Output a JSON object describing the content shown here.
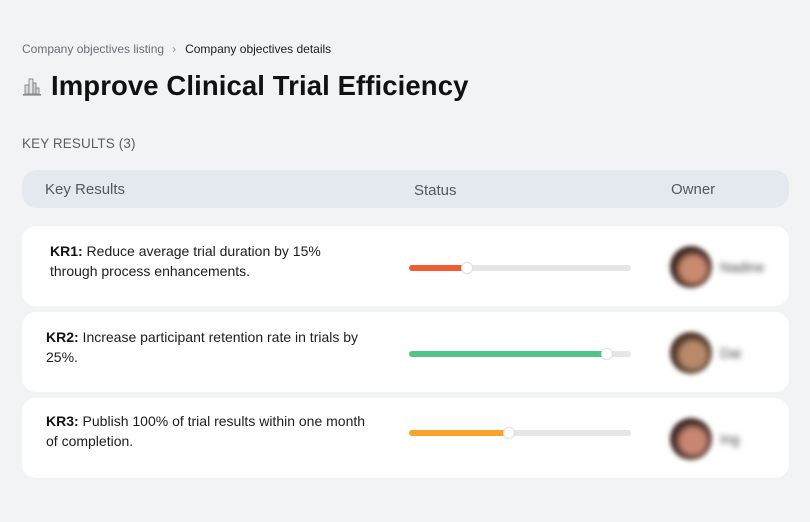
{
  "breadcrumb": {
    "items": [
      {
        "label": "Company objectives listing"
      },
      {
        "label": "Company objectives details"
      }
    ],
    "separator": "›"
  },
  "objective": {
    "icon": "city-buildings-icon",
    "title": "Improve Clinical Trial Efficiency"
  },
  "key_results_section": {
    "label": "KEY RESULTS (3)"
  },
  "table": {
    "headers": {
      "key_results": "Key Results",
      "status": "Status",
      "owner": "Owner"
    },
    "rows": [
      {
        "id": "KR1:",
        "text": " Reduce average trial duration by 15% through process enhancements.",
        "progress_percent": 26,
        "progress_color": "#f25c33",
        "owner_name": "Nadine",
        "avatar_colors": [
          "#3a2420",
          "#c98a6e"
        ]
      },
      {
        "id": "KR2:",
        "text": " Increase participant retention rate in trials by 25%.",
        "progress_percent": 89,
        "progress_color": "#52c48a",
        "owner_name": "Dai",
        "avatar_colors": [
          "#4a3326",
          "#b88a6a"
        ]
      },
      {
        "id": "KR3:",
        "text": " Publish 100% of trial results within one month of completion.",
        "progress_percent": 45,
        "progress_color": "#f8a42a",
        "owner_name": "Ing",
        "avatar_colors": [
          "#3b2622",
          "#c88672"
        ]
      }
    ]
  }
}
